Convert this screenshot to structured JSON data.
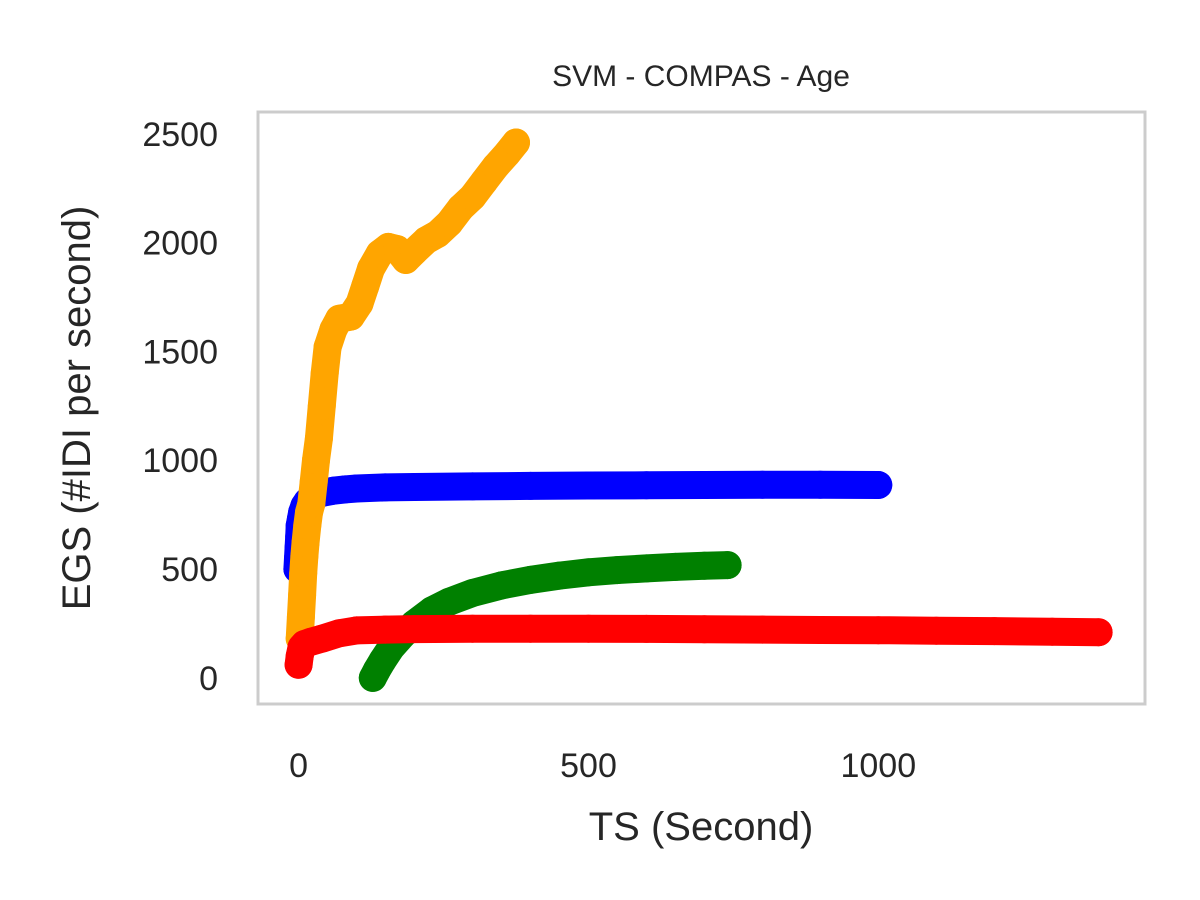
{
  "chart_data": {
    "type": "scatter",
    "title": "SVM - COMPAS - Age",
    "xlabel": "TS (Second)",
    "ylabel": "EGS (#IDI  per second)",
    "xlim": [
      -70,
      1460
    ],
    "ylim": [
      -120,
      2600
    ],
    "xticks": [
      0,
      500,
      1000
    ],
    "yticks": [
      0,
      500,
      1000,
      1500,
      2000,
      2500
    ],
    "grid": false,
    "legend": "none",
    "series": [
      {
        "color": "#0000ff",
        "points": [
          [
            -2,
            500
          ],
          [
            -1,
            550
          ],
          [
            0,
            600
          ],
          [
            1,
            650
          ],
          [
            2,
            700
          ],
          [
            4,
            730
          ],
          [
            6,
            760
          ],
          [
            10,
            790
          ],
          [
            15,
            810
          ],
          [
            22,
            825
          ],
          [
            30,
            840
          ],
          [
            40,
            850
          ],
          [
            60,
            860
          ],
          [
            80,
            866
          ],
          [
            100,
            870
          ],
          [
            150,
            875
          ],
          [
            200,
            877
          ],
          [
            300,
            880
          ],
          [
            400,
            882
          ],
          [
            500,
            884
          ],
          [
            600,
            885
          ],
          [
            700,
            886
          ],
          [
            800,
            887
          ],
          [
            900,
            887
          ],
          [
            1000,
            886
          ]
        ]
      },
      {
        "color": "#008000",
        "points": [
          [
            128,
            0
          ],
          [
            135,
            35
          ],
          [
            145,
            80
          ],
          [
            160,
            140
          ],
          [
            180,
            200
          ],
          [
            200,
            250
          ],
          [
            230,
            310
          ],
          [
            260,
            350
          ],
          [
            300,
            390
          ],
          [
            350,
            425
          ],
          [
            400,
            450
          ],
          [
            450,
            470
          ],
          [
            500,
            485
          ],
          [
            550,
            495
          ],
          [
            600,
            503
          ],
          [
            650,
            510
          ],
          [
            700,
            515
          ],
          [
            740,
            518
          ]
        ]
      },
      {
        "color": "#ffa500",
        "points": [
          [
            2,
            180
          ],
          [
            4,
            280
          ],
          [
            6,
            380
          ],
          [
            8,
            480
          ],
          [
            10,
            560
          ],
          [
            12,
            620
          ],
          [
            15,
            700
          ],
          [
            18,
            760
          ],
          [
            22,
            800
          ],
          [
            26,
            900
          ],
          [
            30,
            1000
          ],
          [
            35,
            1100
          ],
          [
            40,
            1250
          ],
          [
            45,
            1400
          ],
          [
            50,
            1520
          ],
          [
            60,
            1600
          ],
          [
            70,
            1650
          ],
          [
            90,
            1660
          ],
          [
            105,
            1720
          ],
          [
            115,
            1800
          ],
          [
            125,
            1880
          ],
          [
            140,
            1950
          ],
          [
            155,
            1980
          ],
          [
            170,
            1970
          ],
          [
            185,
            1920
          ],
          [
            200,
            1960
          ],
          [
            220,
            2010
          ],
          [
            240,
            2040
          ],
          [
            260,
            2090
          ],
          [
            280,
            2160
          ],
          [
            300,
            2210
          ],
          [
            320,
            2280
          ],
          [
            340,
            2350
          ],
          [
            360,
            2410
          ],
          [
            375,
            2460
          ]
        ]
      },
      {
        "color": "#ff0000",
        "points": [
          [
            0,
            60
          ],
          [
            2,
            100
          ],
          [
            5,
            140
          ],
          [
            10,
            155
          ],
          [
            20,
            165
          ],
          [
            40,
            180
          ],
          [
            70,
            205
          ],
          [
            100,
            218
          ],
          [
            150,
            222
          ],
          [
            200,
            224
          ],
          [
            300,
            226
          ],
          [
            400,
            226
          ],
          [
            500,
            226
          ],
          [
            600,
            225
          ],
          [
            700,
            223
          ],
          [
            800,
            222
          ],
          [
            900,
            220
          ],
          [
            1000,
            219
          ],
          [
            1100,
            217
          ],
          [
            1200,
            215
          ],
          [
            1300,
            212
          ],
          [
            1380,
            210
          ]
        ]
      }
    ]
  }
}
